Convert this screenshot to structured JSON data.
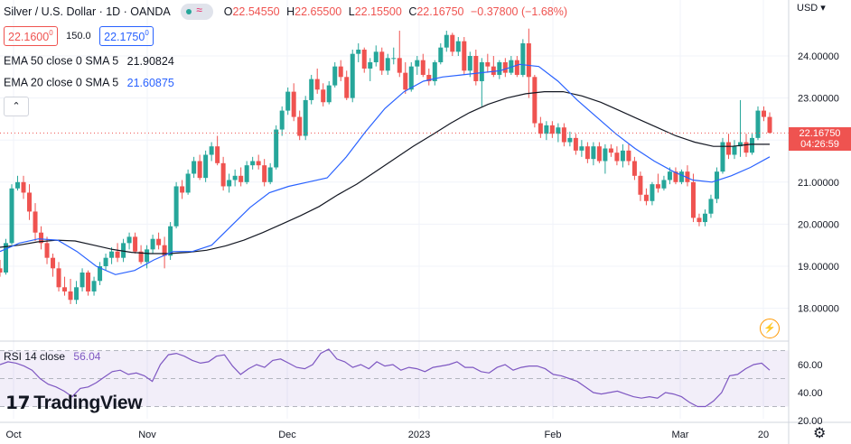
{
  "header": {
    "symbol_title": "Silver / U.S. Dollar · 1D · OANDA",
    "ohlc": [
      {
        "k": "O",
        "v": "22.54550"
      },
      {
        "k": "H",
        "v": "22.65500"
      },
      {
        "k": "L",
        "v": "22.15500"
      },
      {
        "k": "C",
        "v": "22.16750"
      }
    ],
    "change": "−0.37800 (−1.68%)",
    "bid": "22.1600",
    "bid_sup": "0",
    "spread": "150.0",
    "ask": "22.1750",
    "ask_sup": "0"
  },
  "indicators": {
    "ema50": {
      "label": "EMA 50 close 0 SMA 5",
      "value": "21.90824",
      "color": "#131722"
    },
    "ema20": {
      "label": "EMA 20 close 0 SMA 5",
      "value": "21.60875",
      "color": "#2962ff"
    }
  },
  "price_axis": {
    "currency": "USD",
    "ticks": [
      "24.00000",
      "23.00000",
      "22.00000",
      "21.00000",
      "20.00000",
      "19.00000",
      "18.00000"
    ],
    "last_price": "22.16750",
    "countdown": "04:26:59"
  },
  "time_axis": {
    "ticks": [
      "Oct",
      "Nov",
      "Dec",
      "2023",
      "Feb",
      "Mar",
      "20"
    ]
  },
  "rsi": {
    "label": "RSI 14 close",
    "value": "56.04",
    "ticks": [
      "60.00",
      "40.00",
      "20.00"
    ],
    "upper_band": 70,
    "lower_band": 30
  },
  "branding": {
    "logo_text": "TradingView"
  },
  "chart_data": {
    "type": "candlestick",
    "title": "Silver / U.S. Dollar · 1D · OANDA",
    "ylim": [
      17.3,
      25.2
    ],
    "colors": {
      "up": "#26a69a",
      "down": "#ef5350",
      "ema20": "#2962ff",
      "ema50": "#131722"
    },
    "candles": [
      [
        18.95,
        19.15,
        18.75,
        18.85
      ],
      [
        18.85,
        19.65,
        18.8,
        19.55
      ],
      [
        19.55,
        20.95,
        19.5,
        20.85
      ],
      [
        20.85,
        21.15,
        20.8,
        21.0
      ],
      [
        21.0,
        21.15,
        20.6,
        20.75
      ],
      [
        20.75,
        20.95,
        20.1,
        20.3
      ],
      [
        20.3,
        20.5,
        19.6,
        19.8
      ],
      [
        19.8,
        19.95,
        19.4,
        19.55
      ],
      [
        19.55,
        19.7,
        19.05,
        19.2
      ],
      [
        19.2,
        19.3,
        18.75,
        18.95
      ],
      [
        18.95,
        19.1,
        18.4,
        18.5
      ],
      [
        18.5,
        18.75,
        18.3,
        18.4
      ],
      [
        18.4,
        18.7,
        18.1,
        18.2
      ],
      [
        18.2,
        18.65,
        18.1,
        18.5
      ],
      [
        18.5,
        18.95,
        18.4,
        18.85
      ],
      [
        18.85,
        18.9,
        18.3,
        18.4
      ],
      [
        18.4,
        18.75,
        18.3,
        18.65
      ],
      [
        18.65,
        19.1,
        18.55,
        19.0
      ],
      [
        19.0,
        19.3,
        18.9,
        19.2
      ],
      [
        19.2,
        19.45,
        19.05,
        19.35
      ],
      [
        19.35,
        19.55,
        19.1,
        19.2
      ],
      [
        19.2,
        19.65,
        19.1,
        19.55
      ],
      [
        19.55,
        19.8,
        19.4,
        19.7
      ],
      [
        19.7,
        19.8,
        19.3,
        19.35
      ],
      [
        19.35,
        19.5,
        19.05,
        19.1
      ],
      [
        19.1,
        19.5,
        18.95,
        19.4
      ],
      [
        19.4,
        19.75,
        19.3,
        19.65
      ],
      [
        19.65,
        19.8,
        19.4,
        19.5
      ],
      [
        19.5,
        19.7,
        18.95,
        19.25
      ],
      [
        19.25,
        20.05,
        19.15,
        19.95
      ],
      [
        19.95,
        21.0,
        19.9,
        20.9
      ],
      [
        20.9,
        21.05,
        20.6,
        20.75
      ],
      [
        20.75,
        21.3,
        20.7,
        21.2
      ],
      [
        21.2,
        21.6,
        21.1,
        21.5
      ],
      [
        21.5,
        21.65,
        21.05,
        21.1
      ],
      [
        21.1,
        21.75,
        21.0,
        21.65
      ],
      [
        21.65,
        21.95,
        21.5,
        21.85
      ],
      [
        21.85,
        22.1,
        21.4,
        21.45
      ],
      [
        21.45,
        21.6,
        20.8,
        20.9
      ],
      [
        20.9,
        21.2,
        20.75,
        21.05
      ],
      [
        21.05,
        21.3,
        20.9,
        21.15
      ],
      [
        21.15,
        21.35,
        20.9,
        21.0
      ],
      [
        21.0,
        21.5,
        20.95,
        21.4
      ],
      [
        21.4,
        21.6,
        21.3,
        21.5
      ],
      [
        21.5,
        21.65,
        21.3,
        21.4
      ],
      [
        21.4,
        21.55,
        20.9,
        21.0
      ],
      [
        21.0,
        21.45,
        20.95,
        21.35
      ],
      [
        21.35,
        22.35,
        21.3,
        22.25
      ],
      [
        22.25,
        22.8,
        22.1,
        22.7
      ],
      [
        22.7,
        23.25,
        22.6,
        23.15
      ],
      [
        23.15,
        23.35,
        22.45,
        22.55
      ],
      [
        22.55,
        22.7,
        22.0,
        22.1
      ],
      [
        22.1,
        23.05,
        22.0,
        22.95
      ],
      [
        22.95,
        23.55,
        22.85,
        23.45
      ],
      [
        23.45,
        23.7,
        23.1,
        23.2
      ],
      [
        23.2,
        23.35,
        22.8,
        22.9
      ],
      [
        22.9,
        23.4,
        22.85,
        23.3
      ],
      [
        23.3,
        23.85,
        23.25,
        23.75
      ],
      [
        23.75,
        23.9,
        23.4,
        23.5
      ],
      [
        23.5,
        23.65,
        22.95,
        23.0
      ],
      [
        23.0,
        24.15,
        22.9,
        24.05
      ],
      [
        24.05,
        24.3,
        23.85,
        24.15
      ],
      [
        24.15,
        24.2,
        23.6,
        23.7
      ],
      [
        23.7,
        23.95,
        23.4,
        23.85
      ],
      [
        23.85,
        24.25,
        23.75,
        24.1
      ],
      [
        24.1,
        24.2,
        23.55,
        23.65
      ],
      [
        23.65,
        24.05,
        23.55,
        23.95
      ],
      [
        23.95,
        24.2,
        23.8,
        23.95
      ],
      [
        23.95,
        24.6,
        23.5,
        23.6
      ],
      [
        23.6,
        23.85,
        23.1,
        23.2
      ],
      [
        23.2,
        23.85,
        23.15,
        23.75
      ],
      [
        23.75,
        24.0,
        23.55,
        23.9
      ],
      [
        23.9,
        24.05,
        23.5,
        23.55
      ],
      [
        23.55,
        23.7,
        23.3,
        23.4
      ],
      [
        23.4,
        23.9,
        23.3,
        23.85
      ],
      [
        23.85,
        24.3,
        23.8,
        24.2
      ],
      [
        24.2,
        24.6,
        24.1,
        24.5
      ],
      [
        24.5,
        24.55,
        24.0,
        24.1
      ],
      [
        24.1,
        24.45,
        24.0,
        24.35
      ],
      [
        24.35,
        24.45,
        23.55,
        23.65
      ],
      [
        23.65,
        24.1,
        23.5,
        24.0
      ],
      [
        24.0,
        24.15,
        23.3,
        23.4
      ],
      [
        23.4,
        23.95,
        22.8,
        23.85
      ],
      [
        23.85,
        24.05,
        23.6,
        23.75
      ],
      [
        23.75,
        24.0,
        23.5,
        23.55
      ],
      [
        23.55,
        23.9,
        23.45,
        23.85
      ],
      [
        23.85,
        23.95,
        23.5,
        23.6
      ],
      [
        23.6,
        24.0,
        23.55,
        23.9
      ],
      [
        23.9,
        24.0,
        23.5,
        23.55
      ],
      [
        23.55,
        24.4,
        23.5,
        24.3
      ],
      [
        24.3,
        24.65,
        23.0,
        23.5
      ],
      [
        23.5,
        23.55,
        22.3,
        22.4
      ],
      [
        22.4,
        22.55,
        22.05,
        22.15
      ],
      [
        22.15,
        22.45,
        22.0,
        22.35
      ],
      [
        22.35,
        22.45,
        22.05,
        22.15
      ],
      [
        22.15,
        22.4,
        21.95,
        22.3
      ],
      [
        22.3,
        22.4,
        21.85,
        21.95
      ],
      [
        21.95,
        22.2,
        21.85,
        22.05
      ],
      [
        22.05,
        22.15,
        21.65,
        21.75
      ],
      [
        21.75,
        22.0,
        21.6,
        21.85
      ],
      [
        21.85,
        21.95,
        21.45,
        21.55
      ],
      [
        21.55,
        21.95,
        21.4,
        21.85
      ],
      [
        21.85,
        21.95,
        21.45,
        21.5
      ],
      [
        21.5,
        21.9,
        21.2,
        21.8
      ],
      [
        21.8,
        21.9,
        21.6,
        21.7
      ],
      [
        21.7,
        21.85,
        21.4,
        21.5
      ],
      [
        21.5,
        21.9,
        21.35,
        21.75
      ],
      [
        21.75,
        21.9,
        21.4,
        21.5
      ],
      [
        21.5,
        21.6,
        21.05,
        21.15
      ],
      [
        21.15,
        21.25,
        20.55,
        20.7
      ],
      [
        20.7,
        20.85,
        20.45,
        20.55
      ],
      [
        20.55,
        21.0,
        20.45,
        20.95
      ],
      [
        20.95,
        21.2,
        20.75,
        20.85
      ],
      [
        20.85,
        21.15,
        20.8,
        21.05
      ],
      [
        21.05,
        21.35,
        20.95,
        21.25
      ],
      [
        21.25,
        21.35,
        20.95,
        21.0
      ],
      [
        21.0,
        21.3,
        20.95,
        21.25
      ],
      [
        21.25,
        21.4,
        20.9,
        21.0
      ],
      [
        21.0,
        21.2,
        20.05,
        20.15
      ],
      [
        20.15,
        20.25,
        19.95,
        20.05
      ],
      [
        20.05,
        20.35,
        19.95,
        20.25
      ],
      [
        20.25,
        20.7,
        20.15,
        20.6
      ],
      [
        20.6,
        21.35,
        20.5,
        21.25
      ],
      [
        21.25,
        22.05,
        21.2,
        21.95
      ],
      [
        21.95,
        22.15,
        21.55,
        21.65
      ],
      [
        21.65,
        22.0,
        21.55,
        21.85
      ],
      [
        21.85,
        22.95,
        21.6,
        21.95
      ],
      [
        21.95,
        22.15,
        21.6,
        21.7
      ],
      [
        21.7,
        22.15,
        21.65,
        22.05
      ],
      [
        22.05,
        22.8,
        22.0,
        22.7
      ],
      [
        22.7,
        22.8,
        22.45,
        22.55
      ],
      [
        22.55,
        22.66,
        22.16,
        22.17
      ]
    ],
    "ema50_series": [
      19.45,
      19.5,
      19.58,
      19.62,
      19.6,
      19.5,
      19.4,
      19.33,
      19.3,
      19.3,
      19.33,
      19.38,
      19.48,
      19.62,
      19.8,
      20.0,
      20.2,
      20.42,
      20.7,
      20.95,
      21.25,
      21.55,
      21.85,
      22.12,
      22.4,
      22.65,
      22.85,
      23.0,
      23.1,
      23.15,
      23.15,
      23.05,
      22.9,
      22.7,
      22.5,
      22.3,
      22.1,
      21.95,
      21.85,
      21.85,
      21.9,
      21.9
    ],
    "ema20_series": [
      19.35,
      19.55,
      19.65,
      19.62,
      19.35,
      19.0,
      18.8,
      18.9,
      19.15,
      19.35,
      19.35,
      19.5,
      19.95,
      20.4,
      20.75,
      20.9,
      21.0,
      21.1,
      21.6,
      22.2,
      22.75,
      23.15,
      23.4,
      23.5,
      23.55,
      23.6,
      23.65,
      23.8,
      23.75,
      23.4,
      22.95,
      22.55,
      22.15,
      21.8,
      21.5,
      21.25,
      21.05,
      21.0,
      21.15,
      21.35,
      21.6
    ],
    "rsi_values": [
      60,
      62,
      61,
      59,
      56,
      50,
      46,
      44,
      41,
      37,
      43,
      44,
      47,
      51,
      55,
      56,
      53,
      54,
      52,
      48,
      60,
      67,
      68,
      66,
      63,
      61,
      62,
      66,
      67,
      59,
      53,
      57,
      60,
      58,
      63,
      64,
      61,
      58,
      57,
      60,
      68,
      71,
      64,
      62,
      58,
      60,
      57,
      62,
      59,
      60,
      56,
      58,
      57,
      55,
      58,
      59,
      60,
      62,
      58,
      58,
      55,
      54,
      58,
      60,
      56,
      58,
      59,
      59,
      57,
      53,
      52,
      50,
      48,
      44,
      40,
      39,
      40,
      41,
      39,
      37,
      36,
      37,
      36,
      40,
      39,
      37,
      33,
      30,
      30,
      34,
      40,
      52,
      53,
      57,
      60,
      61,
      56
    ]
  }
}
